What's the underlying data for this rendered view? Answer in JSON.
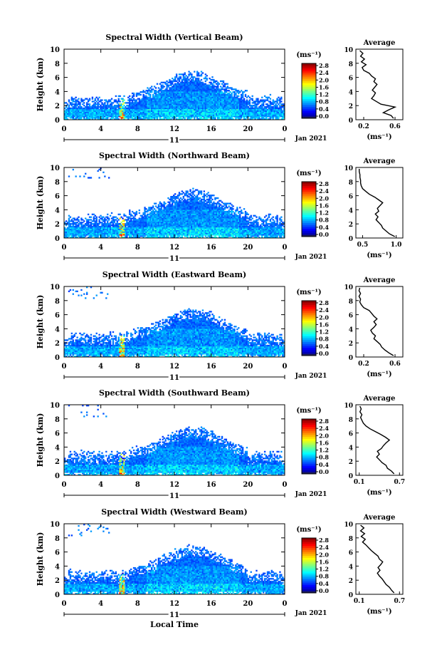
{
  "figure": {
    "xlabel": "Local Time",
    "date_label": "Jan 2021",
    "day_label": "11",
    "time_ticks": [
      "0",
      "4",
      "8",
      "12",
      "16",
      "20",
      "0"
    ],
    "colorbar_unit": "(ms⁻¹)",
    "colorbar_ticks": [
      "0.0",
      "0.4",
      "0.8",
      "1.2",
      "1.6",
      "2.0",
      "2.4",
      "2.8"
    ],
    "avg_title": "Average",
    "avg_xlabel": "(ms⁻¹)"
  },
  "chart_data": [
    {
      "type": "heatmap",
      "title": "Spectral Width (Vertical Beam)",
      "ylabel": "Height (km)",
      "yticks": [
        "0",
        "2",
        "4",
        "6",
        "8",
        "10"
      ],
      "xlim": [
        0,
        24
      ],
      "ylim": [
        0,
        10
      ],
      "clim": [
        0.0,
        2.8
      ],
      "colorbar_ticks": [
        0.0,
        0.4,
        0.8,
        1.2,
        1.6,
        2.0,
        2.4,
        2.8
      ],
      "profile": {
        "type": "line",
        "title": "Average",
        "xticks": [
          "0.2",
          "0.6"
        ],
        "xlim": [
          0.1,
          0.7
        ],
        "ylim": [
          0,
          10
        ],
        "points": [
          [
            0.58,
            0.2
          ],
          [
            0.55,
            0.6
          ],
          [
            0.45,
            1.0
          ],
          [
            0.52,
            1.4
          ],
          [
            0.6,
            1.8
          ],
          [
            0.42,
            2.2
          ],
          [
            0.36,
            2.6
          ],
          [
            0.3,
            3.0
          ],
          [
            0.33,
            3.4
          ],
          [
            0.35,
            3.8
          ],
          [
            0.31,
            4.2
          ],
          [
            0.34,
            4.6
          ],
          [
            0.37,
            5.0
          ],
          [
            0.33,
            5.4
          ],
          [
            0.35,
            5.8
          ],
          [
            0.3,
            6.2
          ],
          [
            0.27,
            6.6
          ],
          [
            0.2,
            7.0
          ],
          [
            0.18,
            7.4
          ],
          [
            0.23,
            7.8
          ],
          [
            0.17,
            8.2
          ],
          [
            0.21,
            8.6
          ],
          [
            0.16,
            9.0
          ],
          [
            0.19,
            9.4
          ],
          [
            0.15,
            9.8
          ]
        ]
      }
    },
    {
      "type": "heatmap",
      "title": "Spectral Width (Northward Beam)",
      "ylabel": "Height (km)",
      "yticks": [
        "0",
        "2",
        "4",
        "6",
        "8",
        "10"
      ],
      "xlim": [
        0,
        24
      ],
      "ylim": [
        0,
        10
      ],
      "clim": [
        0.0,
        2.8
      ],
      "colorbar_ticks": [
        0.0,
        0.4,
        0.8,
        1.2,
        1.6,
        2.0,
        2.4,
        2.8
      ],
      "profile": {
        "type": "line",
        "title": "Average",
        "xticks": [
          "0.5",
          "1.0"
        ],
        "xlim": [
          0.4,
          1.1
        ],
        "ylim": [
          0,
          10
        ],
        "points": [
          [
            0.98,
            0.2
          ],
          [
            0.9,
            0.6
          ],
          [
            0.85,
            1.0
          ],
          [
            0.8,
            1.4
          ],
          [
            0.78,
            1.8
          ],
          [
            0.74,
            2.2
          ],
          [
            0.7,
            2.6
          ],
          [
            0.73,
            3.0
          ],
          [
            0.69,
            3.4
          ],
          [
            0.74,
            3.8
          ],
          [
            0.72,
            4.2
          ],
          [
            0.76,
            4.6
          ],
          [
            0.8,
            5.0
          ],
          [
            0.74,
            5.4
          ],
          [
            0.68,
            5.8
          ],
          [
            0.6,
            6.2
          ],
          [
            0.55,
            6.6
          ],
          [
            0.5,
            7.0
          ],
          [
            0.48,
            7.4
          ],
          [
            0.47,
            7.8
          ],
          [
            0.47,
            8.2
          ],
          [
            0.46,
            8.6
          ],
          [
            0.46,
            9.0
          ],
          [
            0.45,
            9.4
          ],
          [
            0.45,
            9.8
          ]
        ]
      }
    },
    {
      "type": "heatmap",
      "title": "Spectral Width (Eastward Beam)",
      "ylabel": "Height (km)",
      "yticks": [
        "0",
        "2",
        "4",
        "6",
        "8",
        "10"
      ],
      "xlim": [
        0,
        24
      ],
      "ylim": [
        0,
        10
      ],
      "clim": [
        0.0,
        2.8
      ],
      "colorbar_ticks": [
        0.0,
        0.4,
        0.8,
        1.2,
        1.6,
        2.0,
        2.4,
        2.8
      ],
      "profile": {
        "type": "line",
        "title": "Average",
        "xticks": [
          "0.2",
          "0.6"
        ],
        "xlim": [
          0.1,
          0.7
        ],
        "ylim": [
          0,
          10
        ],
        "points": [
          [
            0.58,
            0.2
          ],
          [
            0.52,
            0.6
          ],
          [
            0.47,
            1.0
          ],
          [
            0.43,
            1.4
          ],
          [
            0.41,
            1.8
          ],
          [
            0.37,
            2.2
          ],
          [
            0.33,
            2.6
          ],
          [
            0.35,
            3.0
          ],
          [
            0.31,
            3.4
          ],
          [
            0.29,
            3.8
          ],
          [
            0.33,
            4.2
          ],
          [
            0.36,
            4.6
          ],
          [
            0.33,
            5.0
          ],
          [
            0.37,
            5.4
          ],
          [
            0.33,
            5.8
          ],
          [
            0.3,
            6.2
          ],
          [
            0.27,
            6.6
          ],
          [
            0.2,
            7.0
          ],
          [
            0.17,
            7.4
          ],
          [
            0.15,
            7.8
          ],
          [
            0.16,
            8.2
          ],
          [
            0.14,
            8.6
          ],
          [
            0.16,
            9.0
          ],
          [
            0.14,
            9.4
          ],
          [
            0.15,
            9.8
          ]
        ]
      }
    },
    {
      "type": "heatmap",
      "title": "Spectral Width (Southward Beam)",
      "ylabel": "Height (km)",
      "yticks": [
        "0",
        "2",
        "4",
        "6",
        "8",
        "10"
      ],
      "xlim": [
        0,
        24
      ],
      "ylim": [
        0,
        10
      ],
      "clim": [
        0.0,
        2.8
      ],
      "colorbar_ticks": [
        0.0,
        0.4,
        0.8,
        1.2,
        1.6,
        2.0,
        2.4,
        2.8
      ],
      "profile": {
        "type": "line",
        "title": "Average",
        "xticks": [
          "0.1",
          "0.7"
        ],
        "xlim": [
          0.05,
          0.75
        ],
        "ylim": [
          0,
          10
        ],
        "points": [
          [
            0.62,
            0.2
          ],
          [
            0.58,
            0.6
          ],
          [
            0.52,
            1.0
          ],
          [
            0.5,
            1.4
          ],
          [
            0.44,
            1.8
          ],
          [
            0.4,
            2.2
          ],
          [
            0.36,
            2.6
          ],
          [
            0.4,
            3.0
          ],
          [
            0.37,
            3.4
          ],
          [
            0.43,
            3.8
          ],
          [
            0.46,
            4.2
          ],
          [
            0.5,
            4.6
          ],
          [
            0.55,
            5.0
          ],
          [
            0.49,
            5.4
          ],
          [
            0.42,
            5.8
          ],
          [
            0.34,
            6.2
          ],
          [
            0.26,
            6.6
          ],
          [
            0.2,
            7.0
          ],
          [
            0.16,
            7.4
          ],
          [
            0.14,
            7.8
          ],
          [
            0.12,
            8.2
          ],
          [
            0.14,
            8.6
          ],
          [
            0.11,
            9.0
          ],
          [
            0.13,
            9.4
          ],
          [
            0.11,
            9.8
          ]
        ]
      }
    },
    {
      "type": "heatmap",
      "title": "Spectral Width (Westward Beam)",
      "ylabel": "Height (km)",
      "yticks": [
        "0",
        "2",
        "4",
        "6",
        "8",
        "10"
      ],
      "xlim": [
        0,
        24
      ],
      "ylim": [
        0,
        10
      ],
      "clim": [
        0.0,
        2.8
      ],
      "colorbar_ticks": [
        0.0,
        0.4,
        0.8,
        1.2,
        1.6,
        2.0,
        2.4,
        2.8
      ],
      "profile": {
        "type": "line",
        "title": "Average",
        "xticks": [
          "0.1",
          "0.7"
        ],
        "xlim": [
          0.05,
          0.75
        ],
        "ylim": [
          0,
          10
        ],
        "points": [
          [
            0.62,
            0.2
          ],
          [
            0.58,
            0.6
          ],
          [
            0.55,
            1.0
          ],
          [
            0.5,
            1.4
          ],
          [
            0.47,
            1.8
          ],
          [
            0.44,
            2.2
          ],
          [
            0.4,
            2.6
          ],
          [
            0.37,
            3.0
          ],
          [
            0.41,
            3.4
          ],
          [
            0.38,
            3.8
          ],
          [
            0.42,
            4.2
          ],
          [
            0.45,
            4.6
          ],
          [
            0.4,
            5.0
          ],
          [
            0.38,
            5.4
          ],
          [
            0.33,
            5.8
          ],
          [
            0.28,
            6.2
          ],
          [
            0.24,
            6.6
          ],
          [
            0.2,
            7.0
          ],
          [
            0.15,
            7.4
          ],
          [
            0.19,
            7.8
          ],
          [
            0.13,
            8.2
          ],
          [
            0.18,
            8.6
          ],
          [
            0.12,
            9.0
          ],
          [
            0.17,
            9.4
          ],
          [
            0.12,
            9.8
          ]
        ]
      }
    }
  ]
}
